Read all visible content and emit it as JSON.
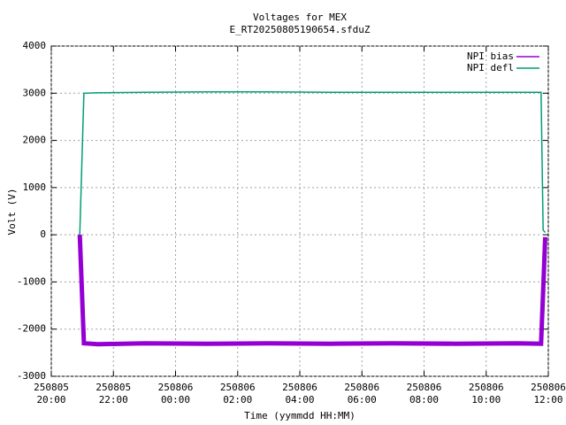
{
  "chart_data": {
    "type": "line",
    "title": "Voltages for MEX",
    "subtitle": "E_RT20250805190654.sfduZ",
    "xlabel": "Time (yymmdd HH:MM)",
    "ylabel": "Volt (V)",
    "xlim": [
      "2025-08-05T20:00",
      "2025-08-06T12:00"
    ],
    "xticks": [
      {
        "value": "2025-08-05T20:00",
        "label": [
          "250805",
          "20:00"
        ]
      },
      {
        "value": "2025-08-05T22:00",
        "label": [
          "250805",
          "22:00"
        ]
      },
      {
        "value": "2025-08-06T00:00",
        "label": [
          "250806",
          "00:00"
        ]
      },
      {
        "value": "2025-08-06T02:00",
        "label": [
          "250806",
          "02:00"
        ]
      },
      {
        "value": "2025-08-06T04:00",
        "label": [
          "250806",
          "04:00"
        ]
      },
      {
        "value": "2025-08-06T06:00",
        "label": [
          "250806",
          "06:00"
        ]
      },
      {
        "value": "2025-08-06T08:00",
        "label": [
          "250806",
          "08:00"
        ]
      },
      {
        "value": "2025-08-06T10:00",
        "label": [
          "250806",
          "10:00"
        ]
      },
      {
        "value": "2025-08-06T12:00",
        "label": [
          "250806",
          "12:00"
        ]
      }
    ],
    "ylim": [
      -3000,
      4000
    ],
    "yticks": [
      -3000,
      -2000,
      -1000,
      0,
      1000,
      2000,
      3000,
      4000
    ],
    "grid": true,
    "legend": "top-right",
    "x": [
      "2025-08-05T20:55",
      "2025-08-05T21:03",
      "2025-08-05T21:30",
      "2025-08-05T23:00",
      "2025-08-06T01:00",
      "2025-08-06T03:00",
      "2025-08-06T05:00",
      "2025-08-06T07:00",
      "2025-08-06T09:00",
      "2025-08-06T11:00",
      "2025-08-06T11:46",
      "2025-08-06T11:50",
      "2025-08-06T11:54"
    ],
    "series": [
      {
        "name": "NPI bias",
        "color": "#9400d3",
        "values": [
          0,
          -2300,
          -2320,
          -2300,
          -2310,
          -2300,
          -2310,
          -2300,
          -2310,
          -2300,
          -2310,
          -1200,
          -50
        ]
      },
      {
        "name": "NPI defl",
        "color": "#009e73",
        "values": [
          0,
          3000,
          3010,
          3020,
          3030,
          3030,
          3020,
          3020,
          3020,
          3020,
          3020,
          100,
          50
        ]
      }
    ]
  }
}
